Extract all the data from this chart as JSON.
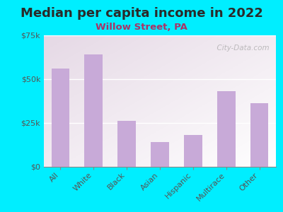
{
  "title": "Median per capita income in 2022",
  "subtitle": "Willow Street, PA",
  "categories": [
    "All",
    "White",
    "Black",
    "Asian",
    "Hispanic",
    "Multirace",
    "Other"
  ],
  "values": [
    56000,
    64000,
    26000,
    14000,
    18000,
    43000,
    36000
  ],
  "bar_color": "#c8aad8",
  "background_outer": "#00eeff",
  "background_inner": "#e8f5e2",
  "title_color": "#2a2a2a",
  "subtitle_color": "#aa3366",
  "tick_label_color": "#555555",
  "ylim": [
    0,
    75000
  ],
  "yticks": [
    0,
    25000,
    50000,
    75000
  ],
  "ytick_labels": [
    "$0",
    "$25k",
    "$50k",
    "$75k"
  ],
  "watermark_text": "  City-Data.com",
  "title_fontsize": 13,
  "subtitle_fontsize": 9.5,
  "tick_fontsize": 8
}
